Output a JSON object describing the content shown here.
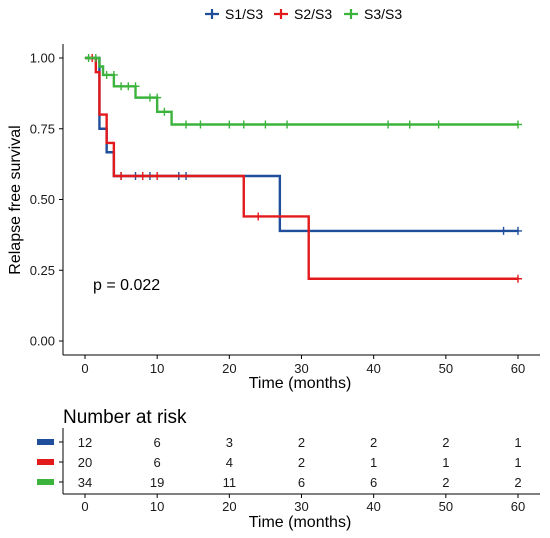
{
  "chart_data": [
    {
      "type": "line",
      "subtype": "kaplan-meier-step",
      "xlabel": "Time (months)",
      "ylabel": "Relapse free survival",
      "xlim": [
        0,
        60
      ],
      "ylim": [
        0,
        1
      ],
      "x_ticks": [
        0,
        10,
        20,
        30,
        40,
        50,
        60
      ],
      "y_ticks": [
        "0.00",
        "0.25",
        "0.50",
        "0.75",
        "1.00"
      ],
      "grid": false,
      "legend_position": "top",
      "annotation": "p = 0.022",
      "series": [
        {
          "name": "S1/S3",
          "color": "#1f4e9a",
          "steps": [
            [
              0,
              1.0
            ],
            [
              2,
              0.75
            ],
            [
              3,
              0.667
            ],
            [
              4,
              0.583
            ],
            [
              27,
              0.389
            ],
            [
              60,
              0.389
            ]
          ],
          "censors": [
            [
              5,
              0.583
            ],
            [
              7,
              0.583
            ],
            [
              9,
              0.583
            ],
            [
              13,
              0.583
            ],
            [
              14,
              0.583
            ],
            [
              58,
              0.389
            ],
            [
              60,
              0.389
            ]
          ]
        },
        {
          "name": "S2/S3",
          "color": "#e31a1c",
          "steps": [
            [
              0,
              1.0
            ],
            [
              1.5,
              0.95
            ],
            [
              2,
              0.8
            ],
            [
              3,
              0.7
            ],
            [
              4,
              0.583
            ],
            [
              22,
              0.44
            ],
            [
              31,
              0.22
            ],
            [
              60,
              0.22
            ]
          ],
          "censors": [
            [
              1,
              1.0
            ],
            [
              5,
              0.583
            ],
            [
              8,
              0.583
            ],
            [
              10,
              0.583
            ],
            [
              24,
              0.44
            ],
            [
              60,
              0.22
            ]
          ]
        },
        {
          "name": "S3/S3",
          "color": "#3cb33c",
          "steps": [
            [
              0,
              1.0
            ],
            [
              2,
              0.97
            ],
            [
              2.5,
              0.94
            ],
            [
              4,
              0.9
            ],
            [
              7,
              0.86
            ],
            [
              10,
              0.81
            ],
            [
              12,
              0.765
            ],
            [
              60,
              0.765
            ]
          ],
          "censors": [
            [
              0.5,
              1.0
            ],
            [
              1.5,
              1.0
            ],
            [
              3,
              0.94
            ],
            [
              4,
              0.94
            ],
            [
              5,
              0.9
            ],
            [
              6,
              0.9
            ],
            [
              7,
              0.9
            ],
            [
              9,
              0.86
            ],
            [
              10,
              0.86
            ],
            [
              11,
              0.81
            ],
            [
              14,
              0.765
            ],
            [
              16,
              0.765
            ],
            [
              20,
              0.765
            ],
            [
              22,
              0.765
            ],
            [
              25,
              0.765
            ],
            [
              28,
              0.765
            ],
            [
              42,
              0.765
            ],
            [
              45,
              0.765
            ],
            [
              49,
              0.765
            ],
            [
              60,
              0.765
            ]
          ]
        }
      ]
    },
    {
      "type": "table",
      "title": "Number at risk",
      "xlabel": "Time (months)",
      "x_ticks": [
        0,
        10,
        20,
        30,
        40,
        50,
        60
      ],
      "rows": [
        {
          "color": "#1f4e9a",
          "values": [
            "12",
            "6",
            "3",
            "2",
            "2",
            "2",
            "1"
          ]
        },
        {
          "color": "#e31a1c",
          "values": [
            "20",
            "6",
            "4",
            "2",
            "1",
            "1",
            "1"
          ]
        },
        {
          "color": "#3cb33c",
          "values": [
            "34",
            "19",
            "11",
            "6",
            "6",
            "2",
            "2"
          ]
        }
      ]
    }
  ]
}
